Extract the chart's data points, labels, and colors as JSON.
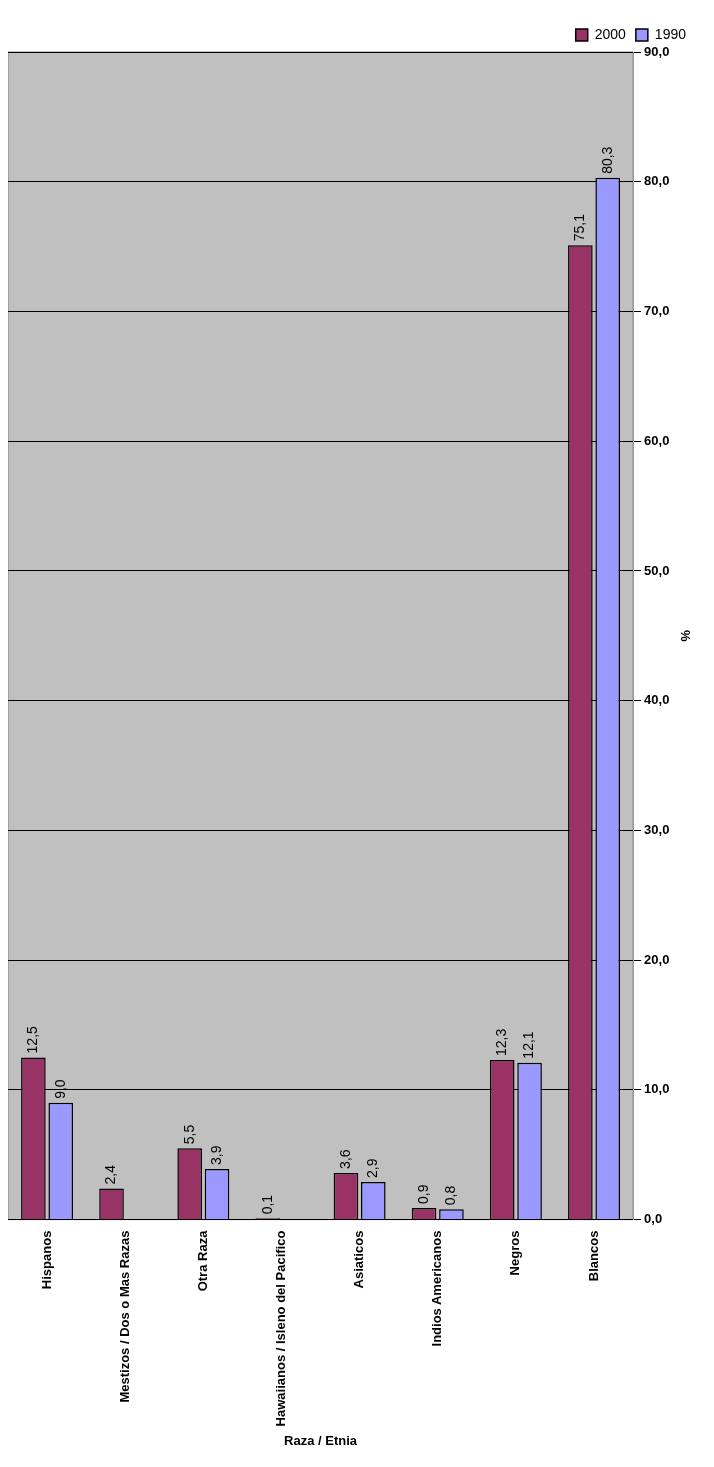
{
  "chart_data": {
    "type": "bar",
    "xlabel": "Raza / Etnia",
    "ylabel": "%",
    "categories": [
      "Hispanos",
      "Mestizos / Dos o Mas Razas",
      "Otra Raza",
      "Hawaiianos / Isleno del Pacifico",
      "Asiaticos",
      "Indios Americanos",
      "Negros",
      "Blancos"
    ],
    "series": [
      {
        "name": "2000",
        "color": "#993366",
        "values": [
          12.5,
          2.4,
          5.5,
          0.1,
          3.6,
          0.9,
          12.3,
          75.1
        ],
        "value_labels": [
          "12,5",
          "2,4",
          "5,5",
          "0,1",
          "3,6",
          "0,9",
          "12,3",
          "75,1"
        ]
      },
      {
        "name": "1990",
        "color": "#9999ff",
        "values": [
          9.0,
          null,
          3.9,
          null,
          2.9,
          0.8,
          12.1,
          80.3
        ],
        "value_labels": [
          "9,0",
          null,
          "3,9",
          null,
          "2,9",
          "0,8",
          "12,1",
          "80,3"
        ]
      }
    ],
    "ylim": [
      0,
      90
    ],
    "yticks": [
      {
        "value": 0,
        "label": "0,0"
      },
      {
        "value": 10,
        "label": "10,0"
      },
      {
        "value": 20,
        "label": "20,0"
      },
      {
        "value": 30,
        "label": "30,0"
      },
      {
        "value": 40,
        "label": "40,0"
      },
      {
        "value": 50,
        "label": "50,0"
      },
      {
        "value": 60,
        "label": "60,0"
      },
      {
        "value": 70,
        "label": "70,0"
      },
      {
        "value": 80,
        "label": "80,0"
      },
      {
        "value": 90,
        "label": "90,0"
      }
    ],
    "grid": "y",
    "legend": "top right"
  }
}
